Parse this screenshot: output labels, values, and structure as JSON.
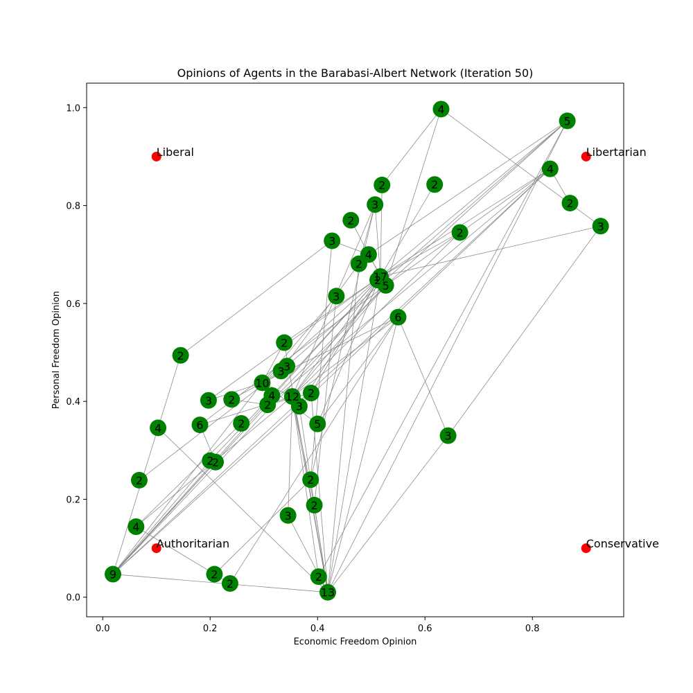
{
  "chart_data": {
    "type": "scatter",
    "title": "Opinions of Agents in the Barabasi-Albert Network (Iteration 50)",
    "xlabel": "Economic Freedom Opinion",
    "ylabel": "Personal Freedom Opinion",
    "xlim": [
      -0.03,
      0.97
    ],
    "ylim": [
      -0.04,
      1.05
    ],
    "x_ticks": [
      "0.0",
      "0.2",
      "0.4",
      "0.6",
      "0.8"
    ],
    "y_ticks": [
      "0.0",
      "0.2",
      "0.4",
      "0.6",
      "0.8",
      "1.0"
    ],
    "x_tick_values": [
      0.0,
      0.2,
      0.4,
      0.6,
      0.8
    ],
    "y_tick_values": [
      0.0,
      0.2,
      0.4,
      0.6,
      0.8,
      1.0
    ],
    "grid": false,
    "colors": {
      "node": "#008000",
      "reference": "#ff0000",
      "edge": "#808080"
    },
    "reference_points": [
      {
        "label": "Liberal",
        "x": 0.1,
        "y": 0.9
      },
      {
        "label": "Libertarian",
        "x": 0.9,
        "y": 0.9
      },
      {
        "label": "Authoritarian",
        "x": 0.1,
        "y": 0.1
      },
      {
        "label": "Conservative",
        "x": 0.9,
        "y": 0.1
      }
    ],
    "nodes": [
      {
        "id": "n0",
        "label": "4",
        "x": 0.63,
        "y": 0.997
      },
      {
        "id": "n1",
        "label": "5",
        "x": 0.865,
        "y": 0.973
      },
      {
        "id": "n2",
        "label": "4",
        "x": 0.833,
        "y": 0.875
      },
      {
        "id": "n3",
        "label": "2",
        "x": 0.52,
        "y": 0.842
      },
      {
        "id": "n4",
        "label": "2",
        "x": 0.618,
        "y": 0.843
      },
      {
        "id": "n5",
        "label": "2",
        "x": 0.87,
        "y": 0.805
      },
      {
        "id": "n6",
        "label": "3",
        "x": 0.507,
        "y": 0.802
      },
      {
        "id": "n7",
        "label": "3",
        "x": 0.927,
        "y": 0.758
      },
      {
        "id": "n8",
        "label": "2",
        "x": 0.462,
        "y": 0.77
      },
      {
        "id": "n9",
        "label": "2",
        "x": 0.665,
        "y": 0.745
      },
      {
        "id": "n10",
        "label": "3",
        "x": 0.427,
        "y": 0.728
      },
      {
        "id": "n11",
        "label": "4",
        "x": 0.495,
        "y": 0.7
      },
      {
        "id": "n12",
        "label": "2",
        "x": 0.477,
        "y": 0.681
      },
      {
        "id": "n13",
        "label": "17",
        "x": 0.517,
        "y": 0.655
      },
      {
        "id": "n14",
        "label": "2",
        "x": 0.512,
        "y": 0.648
      },
      {
        "id": "n15",
        "label": "5",
        "x": 0.527,
        "y": 0.637
      },
      {
        "id": "n16",
        "label": "3",
        "x": 0.435,
        "y": 0.615
      },
      {
        "id": "n17",
        "label": "6",
        "x": 0.55,
        "y": 0.572
      },
      {
        "id": "n18",
        "label": "2",
        "x": 0.145,
        "y": 0.494
      },
      {
        "id": "n19",
        "label": "2",
        "x": 0.338,
        "y": 0.52
      },
      {
        "id": "n20",
        "label": "3",
        "x": 0.343,
        "y": 0.472
      },
      {
        "id": "n21",
        "label": "3",
        "x": 0.332,
        "y": 0.462
      },
      {
        "id": "n22",
        "label": "10",
        "x": 0.297,
        "y": 0.438
      },
      {
        "id": "n23",
        "label": "2",
        "x": 0.388,
        "y": 0.417
      },
      {
        "id": "n24",
        "label": "4",
        "x": 0.315,
        "y": 0.412
      },
      {
        "id": "n25",
        "label": "12",
        "x": 0.353,
        "y": 0.41
      },
      {
        "id": "n26",
        "label": "3",
        "x": 0.197,
        "y": 0.402
      },
      {
        "id": "n27",
        "label": "2",
        "x": 0.24,
        "y": 0.404
      },
      {
        "id": "n28",
        "label": "2",
        "x": 0.307,
        "y": 0.393
      },
      {
        "id": "n29",
        "label": "3",
        "x": 0.366,
        "y": 0.39
      },
      {
        "id": "n30",
        "label": "4",
        "x": 0.103,
        "y": 0.346
      },
      {
        "id": "n31",
        "label": "6",
        "x": 0.181,
        "y": 0.352
      },
      {
        "id": "n32",
        "label": "2",
        "x": 0.258,
        "y": 0.355
      },
      {
        "id": "n33",
        "label": "5",
        "x": 0.4,
        "y": 0.354
      },
      {
        "id": "n34",
        "label": "3",
        "x": 0.643,
        "y": 0.33
      },
      {
        "id": "n35",
        "label": "2",
        "x": 0.2,
        "y": 0.279
      },
      {
        "id": "n36",
        "label": "2",
        "x": 0.21,
        "y": 0.276
      },
      {
        "id": "n37",
        "label": "2",
        "x": 0.068,
        "y": 0.239
      },
      {
        "id": "n38",
        "label": "2",
        "x": 0.387,
        "y": 0.24
      },
      {
        "id": "n39",
        "label": "2",
        "x": 0.394,
        "y": 0.188
      },
      {
        "id": "n40",
        "label": "3",
        "x": 0.345,
        "y": 0.167
      },
      {
        "id": "n41",
        "label": "4",
        "x": 0.062,
        "y": 0.144
      },
      {
        "id": "n42",
        "label": "9",
        "x": 0.019,
        "y": 0.047
      },
      {
        "id": "n43",
        "label": "2",
        "x": 0.208,
        "y": 0.047
      },
      {
        "id": "n44",
        "label": "2",
        "x": 0.237,
        "y": 0.028
      },
      {
        "id": "n45",
        "label": "2",
        "x": 0.402,
        "y": 0.042
      },
      {
        "id": "n46",
        "label": "13",
        "x": 0.419,
        "y": 0.01
      }
    ],
    "edges": [
      [
        "n0",
        "n3"
      ],
      [
        "n0",
        "n15"
      ],
      [
        "n0",
        "n7"
      ],
      [
        "n1",
        "n13"
      ],
      [
        "n1",
        "n15"
      ],
      [
        "n1",
        "n21"
      ],
      [
        "n1",
        "n46"
      ],
      [
        "n1",
        "n11"
      ],
      [
        "n1",
        "n45"
      ],
      [
        "n2",
        "n13"
      ],
      [
        "n2",
        "n15"
      ],
      [
        "n2",
        "n29"
      ],
      [
        "n2",
        "n28"
      ],
      [
        "n2",
        "n42"
      ],
      [
        "n3",
        "n13"
      ],
      [
        "n4",
        "n13"
      ],
      [
        "n5",
        "n2"
      ],
      [
        "n6",
        "n12"
      ],
      [
        "n6",
        "n25"
      ],
      [
        "n6",
        "n38"
      ],
      [
        "n6",
        "n13"
      ],
      [
        "n7",
        "n13"
      ],
      [
        "n7",
        "n34"
      ],
      [
        "n8",
        "n13"
      ],
      [
        "n9",
        "n25"
      ],
      [
        "n9",
        "n13"
      ],
      [
        "n10",
        "n18"
      ],
      [
        "n10",
        "n38"
      ],
      [
        "n10",
        "n11"
      ],
      [
        "n11",
        "n15"
      ],
      [
        "n12",
        "n21"
      ],
      [
        "n12",
        "n46"
      ],
      [
        "n13",
        "n22"
      ],
      [
        "n13",
        "n24"
      ],
      [
        "n13",
        "n23"
      ],
      [
        "n13",
        "n25"
      ],
      [
        "n13",
        "n26"
      ],
      [
        "n13",
        "n29"
      ],
      [
        "n13",
        "n42"
      ],
      [
        "n13",
        "n46"
      ],
      [
        "n13",
        "n19"
      ],
      [
        "n13",
        "n33"
      ],
      [
        "n15",
        "n25"
      ],
      [
        "n15",
        "n28"
      ],
      [
        "n15",
        "n31"
      ],
      [
        "n15",
        "n42"
      ],
      [
        "n16",
        "n22"
      ],
      [
        "n16",
        "n39"
      ],
      [
        "n17",
        "n22"
      ],
      [
        "n17",
        "n25"
      ],
      [
        "n17",
        "n34"
      ],
      [
        "n17",
        "n44"
      ],
      [
        "n17",
        "n46"
      ],
      [
        "n17",
        "n33"
      ],
      [
        "n18",
        "n30"
      ],
      [
        "n19",
        "n22"
      ],
      [
        "n19",
        "n46"
      ],
      [
        "n20",
        "n22"
      ],
      [
        "n20",
        "n37"
      ],
      [
        "n22",
        "n25"
      ],
      [
        "n22",
        "n24"
      ],
      [
        "n22",
        "n26"
      ],
      [
        "n22",
        "n42"
      ],
      [
        "n22",
        "n33"
      ],
      [
        "n22",
        "n27"
      ],
      [
        "n23",
        "n46"
      ],
      [
        "n23",
        "n28"
      ],
      [
        "n25",
        "n41"
      ],
      [
        "n25",
        "n46"
      ],
      [
        "n25",
        "n31"
      ],
      [
        "n25",
        "n45"
      ],
      [
        "n25",
        "n39"
      ],
      [
        "n27",
        "n28"
      ],
      [
        "n28",
        "n42"
      ],
      [
        "n29",
        "n42"
      ],
      [
        "n29",
        "n46"
      ],
      [
        "n30",
        "n46"
      ],
      [
        "n30",
        "n42"
      ],
      [
        "n31",
        "n36"
      ],
      [
        "n32",
        "n41"
      ],
      [
        "n34",
        "n46"
      ],
      [
        "n35",
        "n42"
      ],
      [
        "n35",
        "n24"
      ],
      [
        "n36",
        "n42"
      ],
      [
        "n38",
        "n43"
      ],
      [
        "n40",
        "n46"
      ],
      [
        "n40",
        "n25"
      ],
      [
        "n41",
        "n44"
      ],
      [
        "n42",
        "n46"
      ],
      [
        "n45",
        "n46"
      ],
      [
        "n39",
        "n46"
      ]
    ]
  }
}
